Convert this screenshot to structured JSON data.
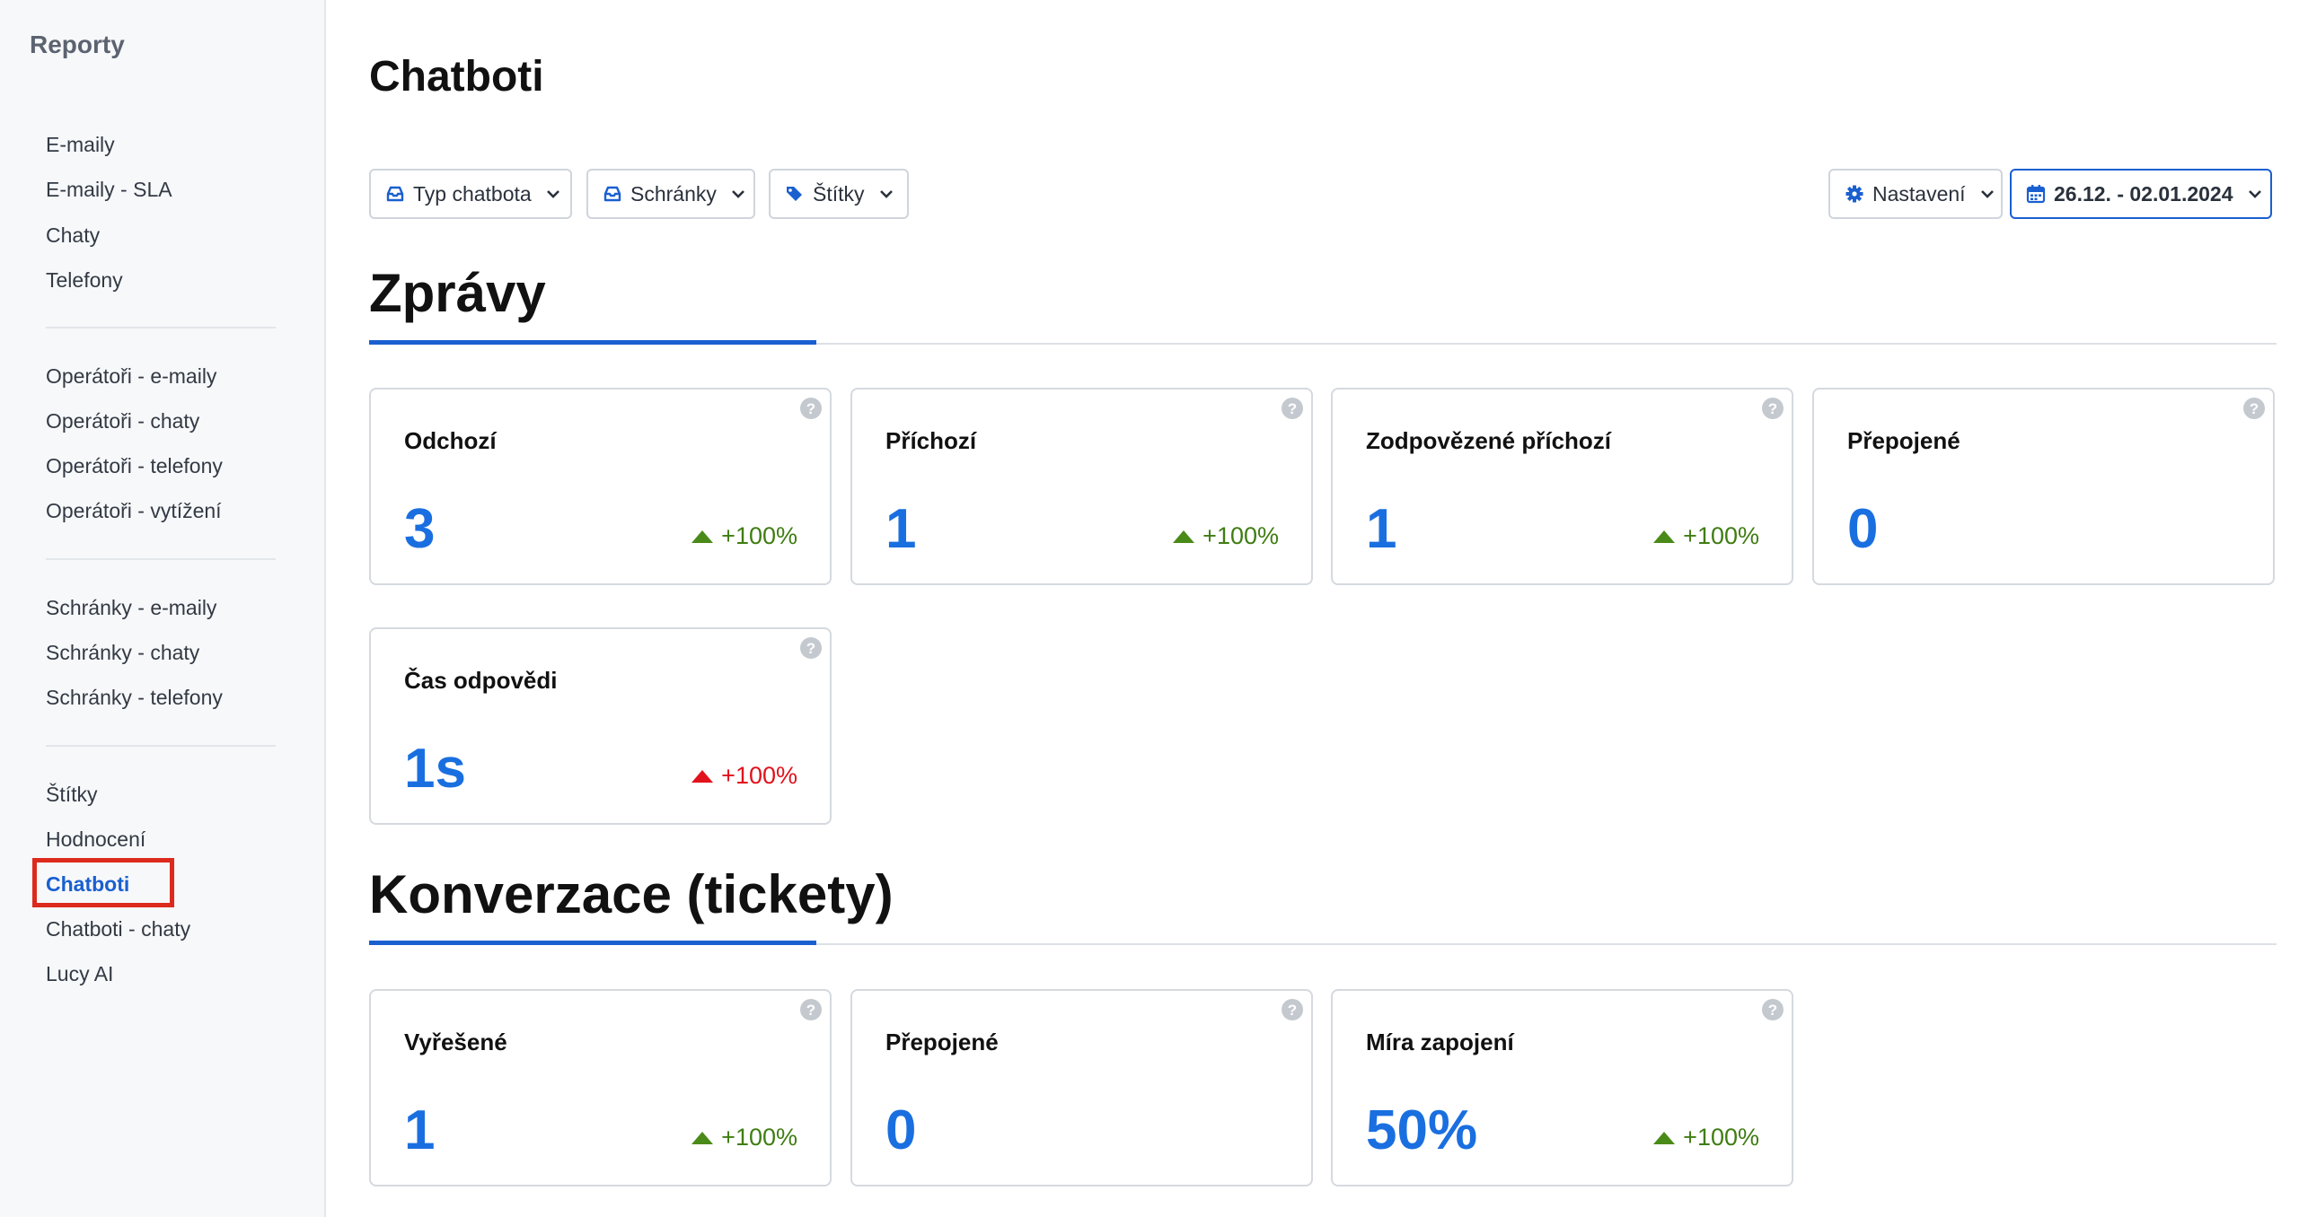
{
  "sidebar": {
    "title": "Reporty",
    "groups": [
      {
        "items": [
          {
            "label": "E-maily"
          },
          {
            "label": "E-maily - SLA"
          },
          {
            "label": "Chaty"
          },
          {
            "label": "Telefony"
          }
        ]
      },
      {
        "items": [
          {
            "label": "Operátoři - e-maily"
          },
          {
            "label": "Operátoři - chaty"
          },
          {
            "label": "Operátoři - telefony"
          },
          {
            "label": "Operátoři - vytížení"
          }
        ]
      },
      {
        "items": [
          {
            "label": "Schránky - e-maily"
          },
          {
            "label": "Schránky - chaty"
          },
          {
            "label": "Schránky - telefony"
          }
        ]
      },
      {
        "items": [
          {
            "label": "Štítky"
          },
          {
            "label": "Hodnocení"
          },
          {
            "label": "Chatboti"
          },
          {
            "label": "Chatboti - chaty"
          },
          {
            "label": "Lucy AI"
          }
        ]
      }
    ],
    "active_item": "Chatboti"
  },
  "header": {
    "title": "Chatboti"
  },
  "filters": {
    "chatbot_type": {
      "label": "Typ chatbota",
      "icon": "inbox-icon"
    },
    "mailboxes": {
      "label": "Schránky",
      "icon": "inbox-icon"
    },
    "tags": {
      "label": "Štítky",
      "icon": "tags-icon"
    },
    "settings": {
      "label": "Nastavení",
      "icon": "gear-icon"
    },
    "date_range": {
      "label": "26.12. - 02.01.2024",
      "icon": "calendar-icon"
    }
  },
  "sections": {
    "messages": {
      "title": "Zprávy",
      "cards": [
        {
          "title": "Odchozí",
          "value": "3",
          "delta": "+100%",
          "trend": "up-good"
        },
        {
          "title": "Příchozí",
          "value": "1",
          "delta": "+100%",
          "trend": "up-good"
        },
        {
          "title": "Zodpovězené příchozí",
          "value": "1",
          "delta": "+100%",
          "trend": "up-good"
        },
        {
          "title": "Přepojené",
          "value": "0"
        },
        {
          "title": "Čas odpovědi",
          "value": "1s",
          "delta": "+100%",
          "trend": "up-bad"
        }
      ]
    },
    "conversions": {
      "title": "Konverzace (tickety)",
      "cards": [
        {
          "title": "Vyřešené",
          "value": "1",
          "delta": "+100%",
          "trend": "up-good"
        },
        {
          "title": "Přepojené",
          "value": "0"
        },
        {
          "title": "Míra zapojení",
          "value": "50%",
          "delta": "+100%",
          "trend": "up-good"
        }
      ]
    }
  },
  "colors": {
    "accent": "#1a5fd0",
    "value": "#1a6fe0",
    "positive": "#3f7d12",
    "negative": "#e1121b",
    "highlight_box": "#dc2a1c"
  }
}
